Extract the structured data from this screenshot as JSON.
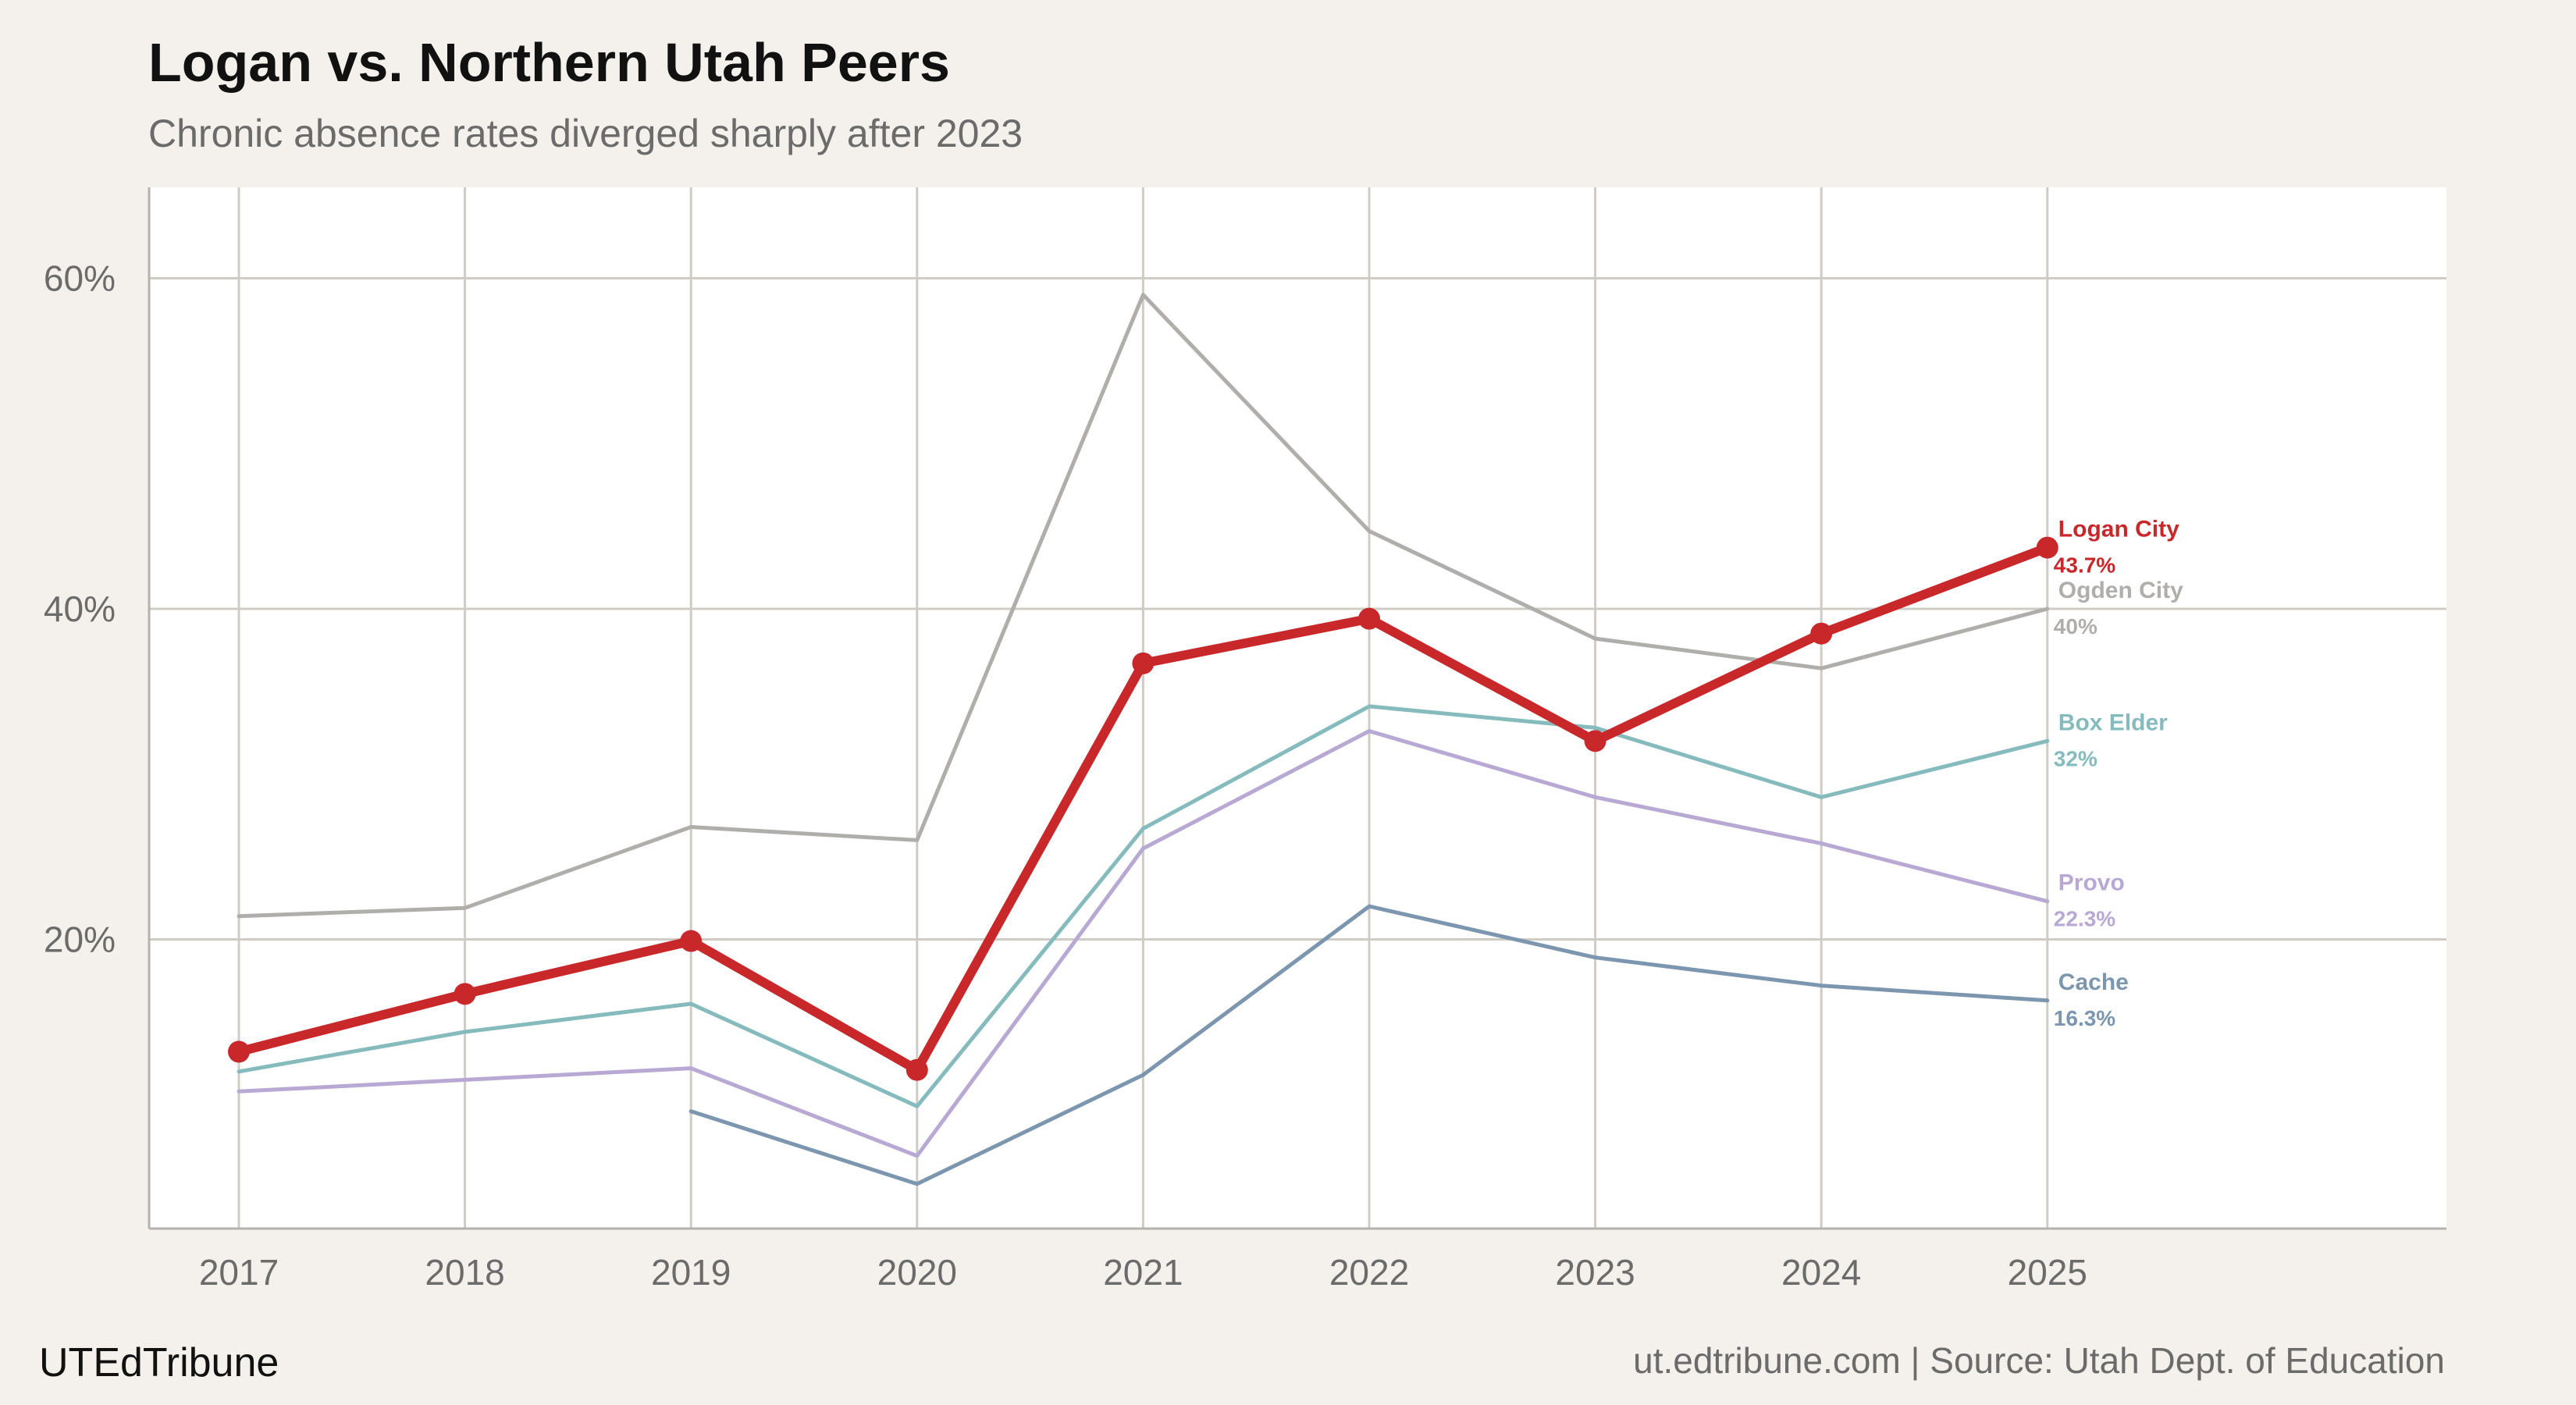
{
  "header": {
    "title": "Logan vs. Northern Utah Peers",
    "subtitle": "Chronic absence rates diverged sharply after 2023"
  },
  "footer": {
    "brand": "UTEdTribune",
    "source": "ut.edtribune.com | Source: Utah Dept. of Education"
  },
  "chart_data": {
    "type": "line",
    "title": "Logan vs. Northern Utah Peers",
    "subtitle": "Chronic absence rates diverged sharply after 2023",
    "xlabel": "",
    "ylabel": "",
    "x": [
      "2017",
      "2018",
      "2019",
      "2020",
      "2021",
      "2022",
      "2023",
      "2024",
      "2025"
    ],
    "ylim": [
      2.5,
      65.5
    ],
    "yticks": [
      20,
      40,
      60
    ],
    "ytick_labels": [
      "20%",
      "40%",
      "60%"
    ],
    "grid": true,
    "legend": "direct labels at line ends",
    "series": [
      {
        "name": "Ogden City",
        "end_label": "40%",
        "color": "#b0aeab",
        "emphasis": false,
        "values": [
          21.4,
          21.9,
          26.8,
          26.0,
          59.0,
          44.7,
          38.2,
          36.4,
          40.0
        ]
      },
      {
        "name": "Box Elder",
        "end_label": "32%",
        "color": "#86bbbe",
        "emphasis": false,
        "values": [
          12.0,
          14.4,
          16.1,
          9.9,
          26.7,
          34.1,
          32.8,
          28.6,
          32.0
        ]
      },
      {
        "name": "Provo",
        "end_label": "22.3%",
        "color": "#b8a8d4",
        "emphasis": false,
        "values": [
          10.8,
          11.5,
          12.2,
          6.9,
          25.5,
          32.6,
          28.6,
          25.8,
          22.3
        ]
      },
      {
        "name": "Cache",
        "end_label": "16.3%",
        "color": "#7b96ae",
        "emphasis": false,
        "values": [
          null,
          null,
          9.6,
          5.2,
          11.8,
          22.0,
          18.9,
          17.2,
          16.3
        ]
      },
      {
        "name": "Logan City",
        "end_label": "43.7%",
        "color": "#c8282a",
        "emphasis": true,
        "values": [
          13.2,
          16.7,
          19.9,
          12.1,
          36.7,
          39.4,
          32.0,
          38.5,
          43.7
        ]
      }
    ]
  }
}
